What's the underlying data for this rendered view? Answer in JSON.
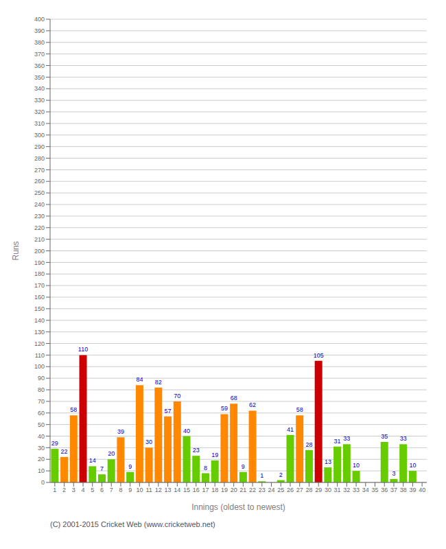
{
  "chart_data": {
    "type": "bar",
    "xlabel": "Innings (oldest to newest)",
    "ylabel": "Runs",
    "annotations": [
      "(C) 2001-2015 Cricket Web (www.cricketweb.net)"
    ],
    "categories": [
      "1",
      "2",
      "3",
      "4",
      "5",
      "6",
      "7",
      "8",
      "9",
      "10",
      "11",
      "12",
      "13",
      "14",
      "15",
      "16",
      "17",
      "18",
      "19",
      "20",
      "21",
      "22",
      "23",
      "24",
      "25",
      "26",
      "27",
      "28",
      "29",
      "30",
      "31",
      "32",
      "33",
      "34",
      "35",
      "36",
      "37",
      "38",
      "39",
      "40"
    ],
    "values": [
      29,
      22,
      58,
      110,
      14,
      7,
      20,
      39,
      9,
      84,
      30,
      82,
      57,
      70,
      40,
      23,
      8,
      19,
      59,
      68,
      9,
      62,
      1,
      0,
      2,
      41,
      58,
      28,
      105,
      13,
      31,
      33,
      10,
      0,
      0,
      35,
      3,
      33,
      10,
      0
    ],
    "colors": [
      "#66cc00",
      "#ff8800",
      "#ff8800",
      "#cc0000",
      "#66cc00",
      "#66cc00",
      "#66cc00",
      "#ff8800",
      "#66cc00",
      "#ff8800",
      "#ff8800",
      "#ff8800",
      "#ff8800",
      "#ff8800",
      "#66cc00",
      "#66cc00",
      "#66cc00",
      "#66cc00",
      "#ff8800",
      "#ff8800",
      "#66cc00",
      "#ff8800",
      "#66cc00",
      "#66cc00",
      "#66cc00",
      "#66cc00",
      "#ff8800",
      "#66cc00",
      "#cc0000",
      "#66cc00",
      "#66cc00",
      "#66cc00",
      "#66cc00",
      "#66cc00",
      "#66cc00",
      "#66cc00",
      "#66cc00",
      "#66cc00",
      "#66cc00",
      "#66cc00"
    ],
    "ylim": [
      0,
      400
    ],
    "yticks": [
      0,
      10,
      20,
      30,
      40,
      50,
      60,
      70,
      80,
      90,
      100,
      110,
      120,
      130,
      140,
      150,
      160,
      170,
      180,
      190,
      200,
      210,
      220,
      230,
      240,
      250,
      260,
      270,
      280,
      290,
      300,
      310,
      320,
      330,
      340,
      350,
      360,
      370,
      380,
      390,
      400
    ],
    "grid": true,
    "data_labels": true
  }
}
